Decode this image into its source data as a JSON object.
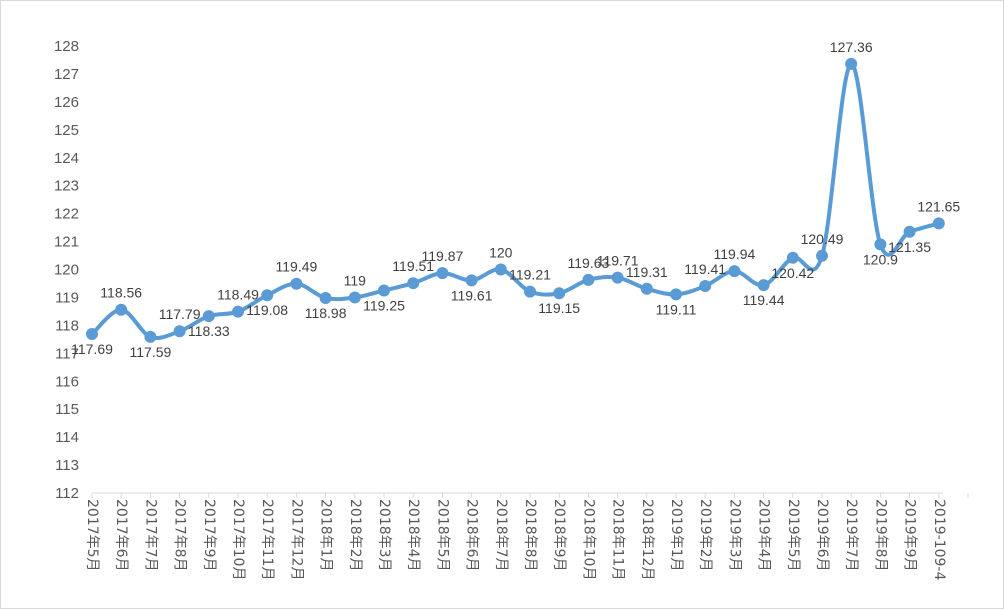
{
  "chart_data": {
    "type": "line",
    "title": "",
    "xlabel": "",
    "ylabel": "",
    "ylim": [
      112,
      128
    ],
    "yticks": [
      112,
      113,
      114,
      115,
      116,
      117,
      118,
      119,
      120,
      121,
      122,
      123,
      124,
      125,
      126,
      127,
      128
    ],
    "grid": false,
    "legend": "none",
    "line_color": "#5b9bd5",
    "categories": [
      "2017年5月",
      "2017年6月",
      "2017年7月",
      "2017年8月",
      "2017年9月",
      "2017年10月",
      "2017年11月",
      "2017年12月",
      "2018年1月",
      "2018年2月",
      "2018年3月",
      "2018年4月",
      "2018年5月",
      "2018年6月",
      "2018年7月",
      "2018年8月",
      "2018年9月",
      "2018年10月",
      "2018年11月",
      "2018年12月",
      "2019年1月",
      "2019年2月",
      "2019年3月",
      "2019年4月",
      "2019年5月",
      "2019年6月",
      "2019年7月",
      "2019年8月",
      "2019年9月",
      "2019-109-4"
    ],
    "series": [
      {
        "values": [
          117.69,
          118.56,
          117.59,
          117.79,
          118.33,
          118.49,
          119.08,
          119.49,
          118.98,
          119.0,
          119.25,
          119.51,
          119.87,
          119.61,
          120.0,
          119.21,
          119.15,
          119.63,
          119.71,
          119.31,
          119.11,
          119.41,
          119.94,
          119.44,
          120.42,
          120.49,
          127.36,
          120.9,
          121.35,
          121.65
        ],
        "data_labels": [
          "117.69",
          "118.56",
          "117.59",
          "117.79",
          "118.33",
          "118.49",
          "119.08",
          "119.49",
          "118.98",
          "119",
          "119.25",
          "119.51",
          "119.87",
          "119.61",
          "120",
          "119.21",
          "119.15",
          "119.63",
          "119.71",
          "119.31",
          "119.11",
          "119.41",
          "119.94",
          "119.44",
          "120.42",
          "120.49",
          "127.36",
          "120.9",
          "121.35",
          "121.65"
        ]
      }
    ]
  }
}
